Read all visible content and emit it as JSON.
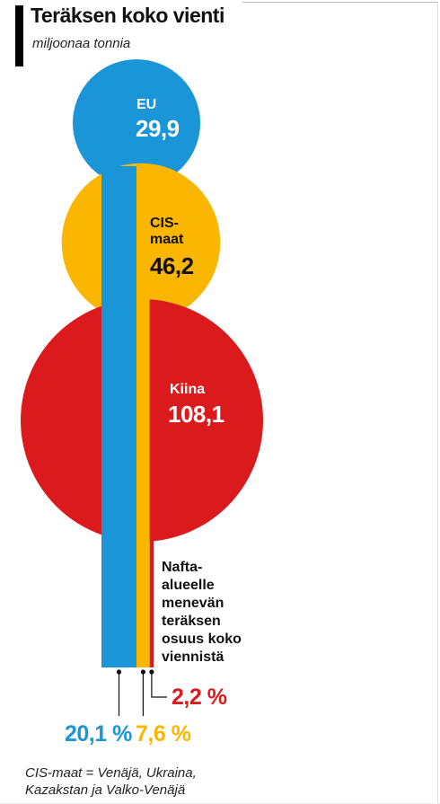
{
  "header": {
    "title": "Teräksen koko vienti",
    "unit": "miljoonaa tonnia"
  },
  "chart_data": {
    "type": "bubble-bar",
    "title": "Teräksen koko vienti",
    "unit": "miljoonaa tonnia",
    "bubbles": [
      {
        "name_lines": [
          "EU"
        ],
        "value_label": "29,9",
        "value": 29.9,
        "color": "#1a96d8"
      },
      {
        "name_lines": [
          "CIS-",
          "maat"
        ],
        "value_label": "46,2",
        "value": 46.2,
        "color": "#fbb700"
      },
      {
        "name_lines": [
          "Kiina"
        ],
        "value_label": "108,1",
        "value": 108.1,
        "color": "#db1a1d"
      }
    ],
    "shares": [
      {
        "name": "EU",
        "value_label": "20,1 %",
        "value": 20.1,
        "color": "#1a96d8"
      },
      {
        "name": "CIS-maat",
        "value_label": "7,6 %",
        "value": 7.6,
        "color": "#fbb700"
      },
      {
        "name": "Kiina",
        "value_label": "2,2 %",
        "value": 2.2,
        "color": "#db1a1d"
      }
    ],
    "share_note": "Nafta-alueelle menevän teräksen osuus koko viennistä"
  },
  "annotation": {
    "note_lines": [
      "Nafta-",
      "alueelle",
      "menevän",
      "teräksen",
      "osuus koko",
      "viennistä"
    ]
  },
  "footnote": "CIS-maat = Venäjä, Ukraina, Kazakstan ja Valko-Venäjä"
}
